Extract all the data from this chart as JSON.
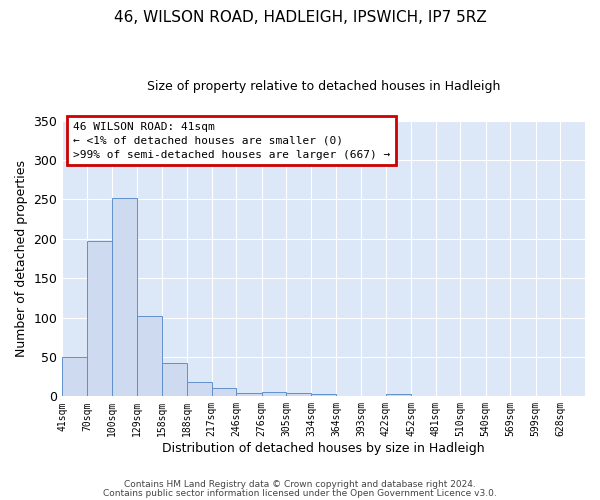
{
  "title": "46, WILSON ROAD, HADLEIGH, IPSWICH, IP7 5RZ",
  "subtitle": "Size of property relative to detached houses in Hadleigh",
  "xlabel": "Distribution of detached houses by size in Hadleigh",
  "ylabel": "Number of detached properties",
  "bin_labels": [
    "41sqm",
    "70sqm",
    "100sqm",
    "129sqm",
    "158sqm",
    "188sqm",
    "217sqm",
    "246sqm",
    "276sqm",
    "305sqm",
    "334sqm",
    "364sqm",
    "393sqm",
    "422sqm",
    "452sqm",
    "481sqm",
    "510sqm",
    "540sqm",
    "569sqm",
    "599sqm",
    "628sqm"
  ],
  "bin_edges": [
    41,
    70,
    100,
    129,
    158,
    188,
    217,
    246,
    276,
    305,
    334,
    364,
    393,
    422,
    452,
    481,
    510,
    540,
    569,
    599,
    628
  ],
  "counts": [
    50,
    197,
    252,
    102,
    42,
    18,
    10,
    4,
    5,
    4,
    3,
    0,
    0,
    3,
    0,
    0,
    0,
    0,
    0,
    0,
    0
  ],
  "bar_color": "#cddaf0",
  "bar_edge_color": "#6090cc",
  "figure_bg": "#ffffff",
  "axes_bg": "#dce8f8",
  "annotation_box_color": "#ffffff",
  "annotation_box_edge": "#cc0000",
  "annotation_line1": "46 WILSON ROAD: 41sqm",
  "annotation_line2": "← <1% of detached houses are smaller (0)",
  "annotation_line3": ">99% of semi-detached houses are larger (667) →",
  "ylim": [
    0,
    350
  ],
  "yticks": [
    0,
    50,
    100,
    150,
    200,
    250,
    300,
    350
  ],
  "footnote1": "Contains HM Land Registry data © Crown copyright and database right 2024.",
  "footnote2": "Contains public sector information licensed under the Open Government Licence v3.0."
}
